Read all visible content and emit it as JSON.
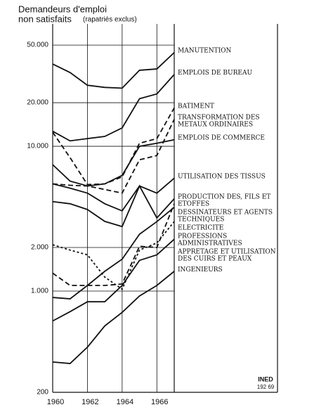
{
  "chart_data": {
    "type": "line",
    "title": "Demandeurs d'emploi",
    "subtitle": "non satisfaits",
    "note": "(rapatriés exclus)",
    "stamp": "INED",
    "stamp_code": "192 69",
    "x": [
      1960,
      1961,
      1962,
      1963,
      1964,
      1965,
      1966,
      1967
    ],
    "xlim": [
      1960,
      1967
    ],
    "xticks": [
      1960,
      1962,
      1964,
      1966
    ],
    "ylim": [
      200,
      70000
    ],
    "log_scale": true,
    "grid": true,
    "yticks": [
      200,
      {
        "value": 1000,
        "label": "1.000"
      },
      {
        "value": 2000,
        "label": "2.000"
      },
      {
        "value": 10000,
        "label": "10.000"
      },
      {
        "value": 20000,
        "label": "20.000"
      },
      {
        "value": 50000,
        "label": "50.000"
      }
    ],
    "series": [
      {
        "name": "MANUTENTION",
        "color": "#111111",
        "style": "solid",
        "values": [
          37000,
          32300,
          26400,
          25500,
          25200,
          33500,
          34200,
          44400
        ]
      },
      {
        "name": "EMPLOIS DE BUREAU",
        "color": "#111111",
        "style": "solid",
        "values": [
          12700,
          10900,
          11300,
          11700,
          13400,
          21300,
          23000,
          31300
        ]
      },
      {
        "name": "BATIMENT",
        "color": "#111111",
        "style": "dashed",
        "values": [
          12500,
          8350,
          5440,
          5500,
          6150,
          10500,
          11300,
          18400
        ]
      },
      {
        "name": "TRANSFORMATION DES METAUX ORDINAIRES",
        "color": "#111111",
        "style": "dashed",
        "values": [
          5500,
          5380,
          5320,
          5030,
          4750,
          8070,
          8630,
          15350
        ]
      },
      {
        "name": "EMPLOIS DE COMMERCE",
        "color": "#111111",
        "style": "solid",
        "values": [
          7460,
          5750,
          5320,
          5500,
          6300,
          10000,
          10500,
          11100
        ]
      },
      {
        "name": "UTILISATION DES TISSUS",
        "color": "#111111",
        "style": "solid",
        "values": [
          5500,
          5140,
          4750,
          4010,
          3580,
          5320,
          4750,
          6020
        ]
      },
      {
        "name": "PRODUCTION DES, FILS ET ETOFFES",
        "color": "#111111",
        "style": "solid",
        "values": [
          4150,
          4010,
          3660,
          3030,
          2790,
          5320,
          3200,
          4340
        ]
      },
      {
        "name": "DESSINATEURS ET AGENTS TECHNIQUES",
        "color": "#111111",
        "style": "dashed",
        "values": [
          1330,
          1094,
          1094,
          1094,
          1120,
          2040,
          2000,
          4010
        ]
      },
      {
        "name": "ELECTRICITE",
        "color": "#111111",
        "style": "solid",
        "values": [
          904,
          884,
          1094,
          1370,
          1662,
          2470,
          3020,
          3790
        ]
      },
      {
        "name": "PROFESSIONS ADMINISTRATIVES",
        "color": "#111111",
        "style": "dotted",
        "values": [
          2090,
          1920,
          1780,
          1250,
          1030,
          1920,
          2150,
          3020
        ]
      },
      {
        "name": "APPRETAGE ET UTILISATION DES CUIRS ET PEAUX",
        "color": "#111111",
        "style": "solid",
        "values": [
          622,
          721,
          844,
          844,
          1094,
          1630,
          1780,
          2280
        ]
      },
      {
        "name": "INGENIEURS",
        "color": "#111111",
        "style": "solid",
        "values": [
          324,
          316,
          410,
          575,
          713,
          925,
          1094,
          1370
        ]
      }
    ]
  }
}
